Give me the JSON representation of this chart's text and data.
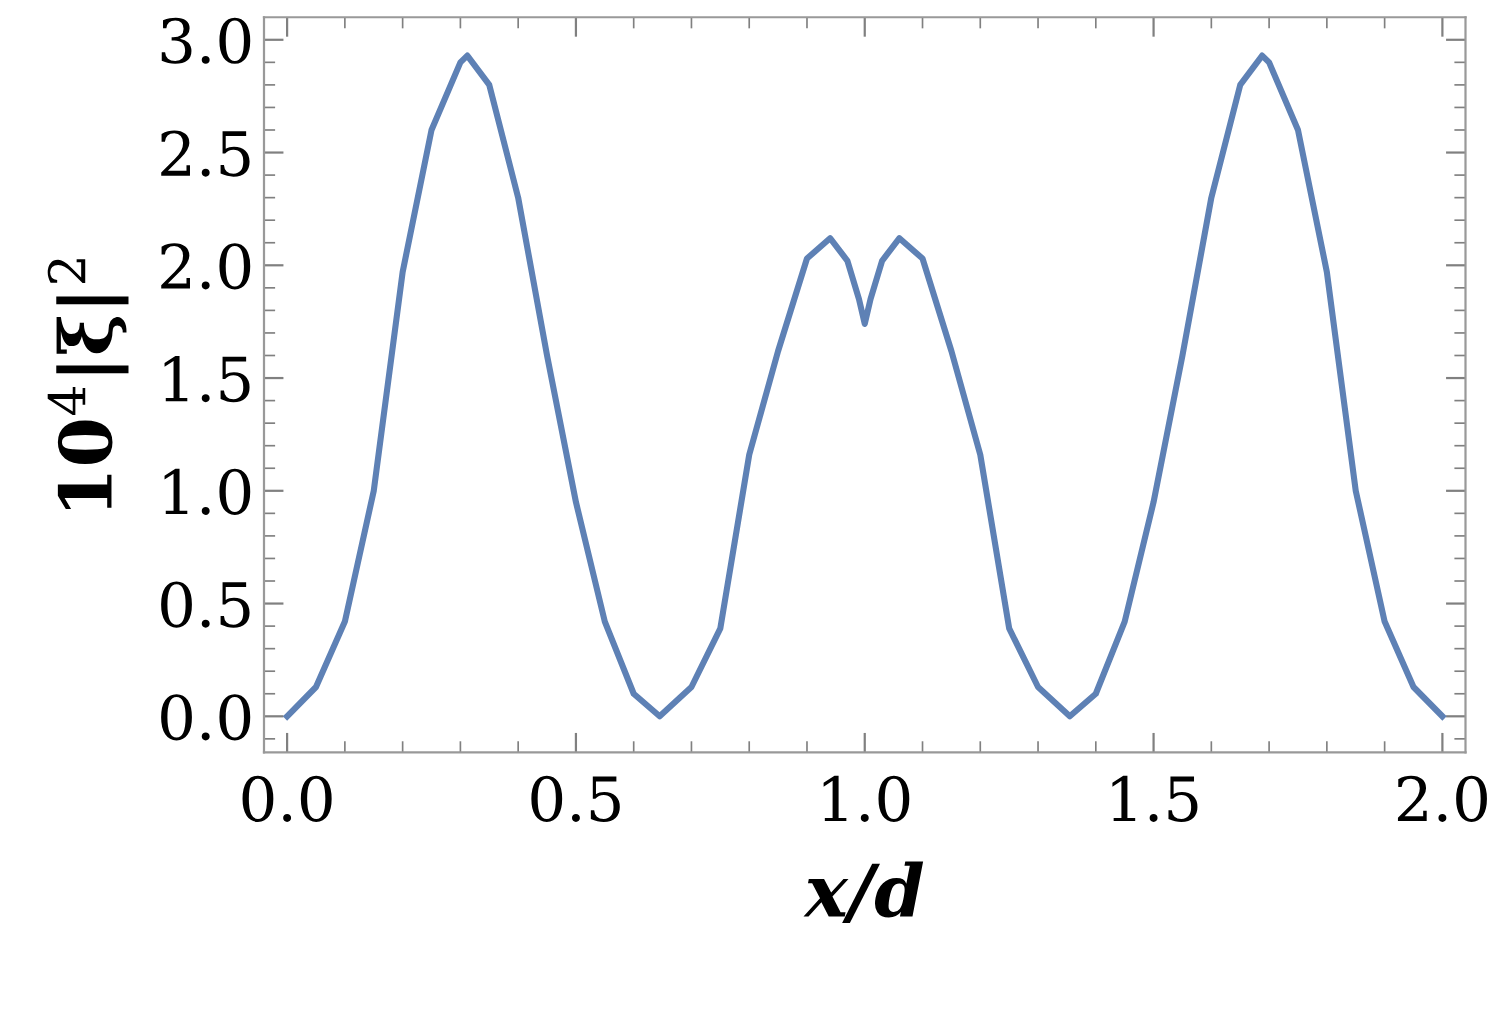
{
  "chart_data": {
    "type": "line",
    "xlabel": "x/d",
    "ylabel": "10$^{4}$|ξ|$^{2}$",
    "x": [
      0,
      0.05,
      0.1,
      0.15,
      0.2,
      0.25,
      0.3,
      0.312,
      0.35,
      0.4,
      0.45,
      0.5,
      0.55,
      0.6,
      0.645,
      0.7,
      0.75,
      0.8,
      0.85,
      0.9,
      0.94,
      0.97,
      0.99,
      1.0,
      1.01,
      1.03,
      1.06,
      1.1,
      1.15,
      1.2,
      1.25,
      1.3,
      1.355,
      1.4,
      1.45,
      1.5,
      1.55,
      1.6,
      1.65,
      1.688,
      1.7,
      1.75,
      1.8,
      1.85,
      1.9,
      1.95,
      2.0
    ],
    "series": [
      {
        "color": "#5e81b5",
        "values": [
          0,
          0.13,
          0.42,
          1.0,
          1.97,
          2.6,
          2.9,
          2.93,
          2.8,
          2.3,
          1.6,
          0.95,
          0.42,
          0.1,
          0,
          0.13,
          0.39,
          1.16,
          1.62,
          2.03,
          2.12,
          2.02,
          1.85,
          1.74,
          1.85,
          2.02,
          2.12,
          2.03,
          1.62,
          1.16,
          0.39,
          0.13,
          0,
          0.1,
          0.42,
          0.95,
          1.6,
          2.3,
          2.8,
          2.93,
          2.9,
          2.6,
          1.97,
          1.0,
          0.42,
          0.13,
          0
        ]
      }
    ],
    "xlim": [
      -0.04,
      2.04
    ],
    "ylim": [
      -0.16,
      3.1
    ],
    "xticks": [
      {
        "value": 0,
        "label": "0.0"
      },
      0.5,
      {
        "value": 1,
        "label": "1.0"
      },
      1.5,
      {
        "value": 2,
        "label": "2.0"
      },
      {
        "value": 0.1,
        "label": null
      },
      {
        "value": 0.2,
        "label": null
      },
      {
        "value": 0.3,
        "label": null
      },
      {
        "value": 0.4,
        "label": null
      },
      {
        "value": 0.6,
        "label": null
      },
      {
        "value": 0.7,
        "label": null
      },
      {
        "value": 0.8,
        "label": null
      },
      {
        "value": 0.9,
        "label": null
      },
      {
        "value": 1.1,
        "label": null
      },
      {
        "value": 1.2,
        "label": null
      },
      {
        "value": 1.3,
        "label": null
      },
      {
        "value": 1.4,
        "label": null
      },
      {
        "value": 1.6,
        "label": null
      },
      {
        "value": 1.7,
        "label": null
      },
      {
        "value": 1.8,
        "label": null
      },
      {
        "value": 1.9,
        "label": null
      }
    ],
    "yticks": [
      {
        "value": 0,
        "label": "0.0"
      },
      0.5,
      {
        "value": 1,
        "label": "1.0"
      },
      1.5,
      {
        "value": 2,
        "label": "2.0"
      },
      2.5,
      {
        "value": 3,
        "label": "3.0"
      },
      {
        "value": -0.1,
        "label": null
      },
      {
        "value": 0.1,
        "label": null
      },
      {
        "value": 0.2,
        "label": null
      },
      {
        "value": 0.3,
        "label": null
      },
      {
        "value": 0.4,
        "label": null
      },
      {
        "value": 0.6,
        "label": null
      },
      {
        "value": 0.7,
        "label": null
      },
      {
        "value": 0.8,
        "label": null
      },
      {
        "value": 0.9,
        "label": null
      },
      {
        "value": 1.1,
        "label": null
      },
      {
        "value": 1.2,
        "label": null
      },
      {
        "value": 1.3,
        "label": null
      },
      {
        "value": 1.4,
        "label": null
      },
      {
        "value": 1.6,
        "label": null
      },
      {
        "value": 1.7,
        "label": null
      },
      {
        "value": 1.8,
        "label": null
      },
      {
        "value": 1.9,
        "label": null
      },
      {
        "value": 2.1,
        "label": null
      },
      {
        "value": 2.2,
        "label": null
      },
      {
        "value": 2.3,
        "label": null
      },
      {
        "value": 2.4,
        "label": null
      },
      {
        "value": 2.6,
        "label": null
      },
      {
        "value": 2.7,
        "label": null
      },
      {
        "value": 2.8,
        "label": null
      },
      {
        "value": 2.9,
        "label": null
      }
    ],
    "grid": false,
    "legend": false,
    "marker": "none",
    "line_style": "solid"
  }
}
